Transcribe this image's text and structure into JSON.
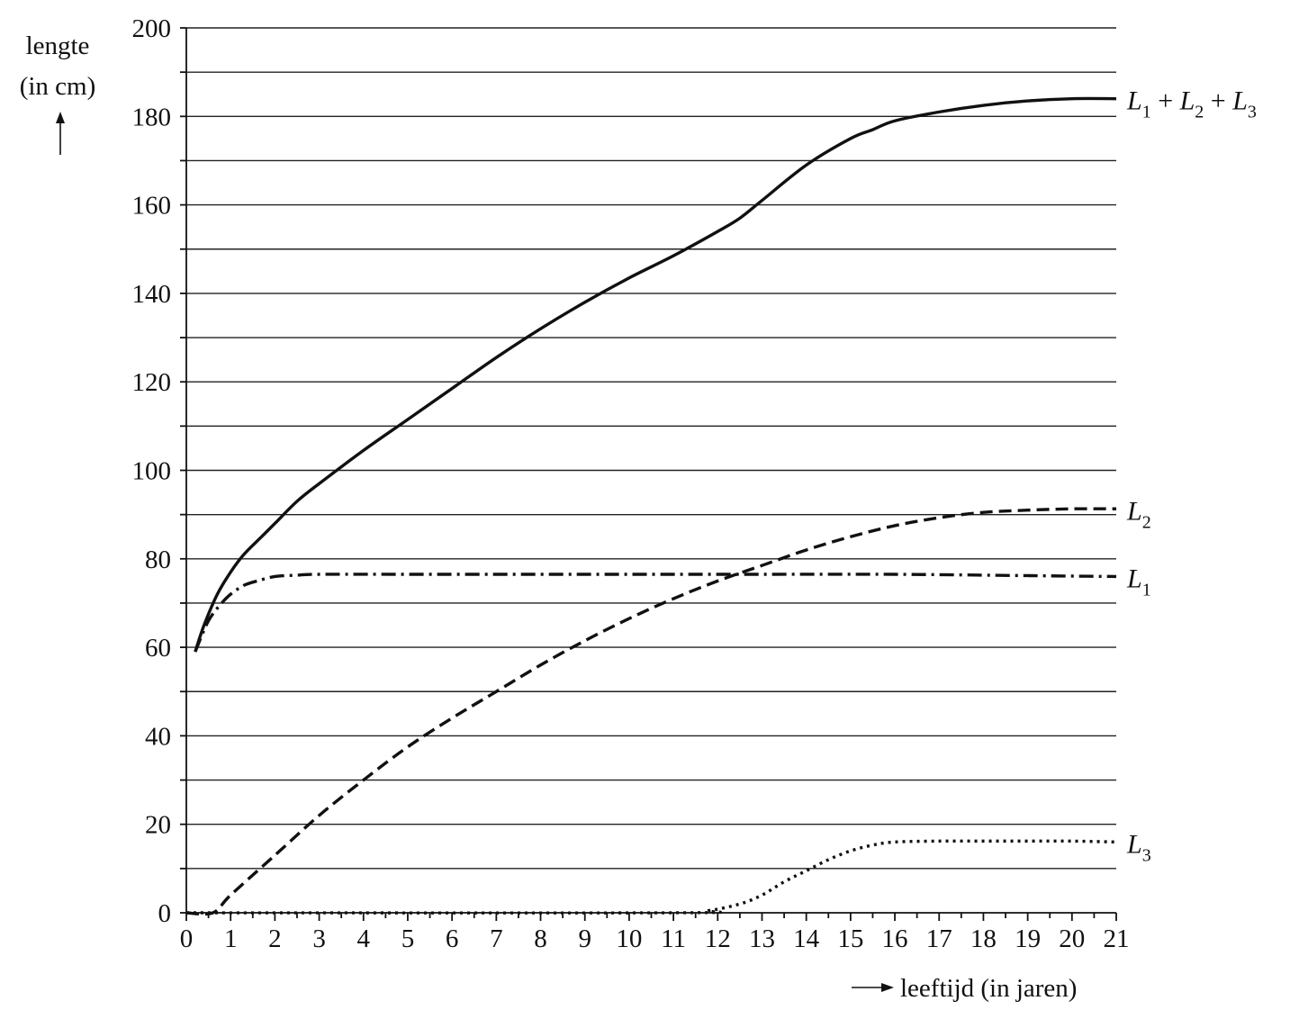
{
  "chart_data": {
    "type": "line",
    "title": "",
    "ylabel": [
      "lengte",
      "(in cm)"
    ],
    "xlabel": "leeftijd (in jaren)",
    "xlim": [
      0,
      21
    ],
    "ylim": [
      0,
      200
    ],
    "x_ticks": [
      0,
      1,
      2,
      3,
      4,
      5,
      6,
      7,
      8,
      9,
      10,
      11,
      12,
      13,
      14,
      15,
      16,
      17,
      18,
      19,
      20,
      21
    ],
    "y_ticks": [
      0,
      20,
      40,
      60,
      80,
      100,
      120,
      140,
      160,
      180,
      200
    ],
    "grid": "horizontal, every 10 cm",
    "legend": "labels at right end of each curve",
    "series": [
      {
        "name": "L1 + L2 + L3",
        "label_parts": [
          "L",
          "1",
          " + ",
          "L",
          "2",
          " + ",
          "L",
          "3"
        ],
        "style": "solid",
        "x": [
          0.2,
          0.4,
          0.7,
          1,
          1.3,
          1.7,
          2,
          2.5,
          3,
          4,
          5,
          6,
          7,
          8,
          9,
          10,
          11,
          12,
          12.5,
          13,
          14,
          15,
          15.5,
          16,
          17,
          18,
          19,
          20,
          21
        ],
        "y": [
          59,
          65,
          72,
          77,
          81,
          85,
          88,
          93,
          97,
          104.5,
          111.5,
          118.5,
          125.5,
          132,
          138,
          143.5,
          148.5,
          154,
          157,
          161,
          169,
          175,
          177,
          179,
          181,
          182.5,
          183.5,
          184,
          184
        ]
      },
      {
        "name": "L1",
        "label_parts": [
          "L",
          "1"
        ],
        "style": "dash-dot",
        "x": [
          0.2,
          0.5,
          0.8,
          1,
          1.3,
          1.6,
          2,
          2.5,
          3,
          5,
          8,
          10,
          13,
          16,
          19,
          21
        ],
        "y": [
          59,
          66,
          70,
          72,
          74,
          75,
          76,
          76.3,
          76.5,
          76.5,
          76.5,
          76.5,
          76.5,
          76.5,
          76.2,
          76
        ]
      },
      {
        "name": "L2",
        "label_parts": [
          "L",
          "2"
        ],
        "style": "dashed",
        "x": [
          0,
          0.6,
          1,
          2,
          3,
          4,
          5,
          6,
          7,
          8,
          9,
          10,
          11,
          12,
          13,
          14,
          15,
          16,
          17,
          18,
          19,
          20,
          21
        ],
        "y": [
          0,
          0,
          4,
          13,
          22,
          30,
          37.5,
          44,
          50,
          56,
          61.5,
          66.5,
          71,
          75,
          78.5,
          82,
          85,
          87.5,
          89.3,
          90.5,
          91,
          91.3,
          91.3
        ]
      },
      {
        "name": "L3",
        "label_parts": [
          "L",
          "3"
        ],
        "style": "dotted",
        "x": [
          0,
          11,
          11.8,
          12.5,
          13,
          13.5,
          14,
          14.5,
          15,
          15.5,
          16,
          17,
          18,
          19,
          20,
          21
        ],
        "y": [
          0,
          0,
          0.5,
          2,
          4,
          7,
          9.5,
          12,
          14,
          15.3,
          16,
          16.2,
          16.2,
          16.2,
          16.2,
          16
        ]
      }
    ]
  }
}
